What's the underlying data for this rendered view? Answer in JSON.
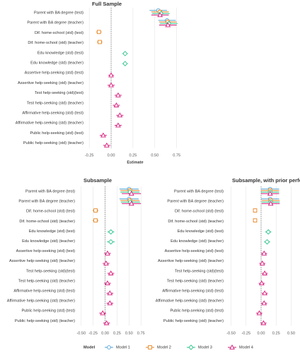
{
  "chart_data": [
    {
      "type": "coefplot",
      "title": "Full Sample",
      "xlabel": "Estimate",
      "legend_title": "Model",
      "categories": [
        "Parent with BA degree (test)",
        "Parent with BA degree (teacher)",
        "Dif. home-school (std) (test)",
        "Dif. home-school (std) (teacher)",
        "Edu knowledge (std) (test)",
        "Edu knowledge (std) (teacher)",
        "Assertive help-seeking (std) (test)",
        "Assertive help-seeking (std) (teacher)",
        "Test help-seeking (std)(test)",
        "Test help-seeking (std) (teacher)",
        "Affirmative help-seeking (std) (test)",
        "Affirmative help-seeking (std) (teacher)",
        "Public help-seeking (std) (test)",
        "Public help-seeking (std) (teacher)"
      ],
      "xlim": [
        -0.3,
        0.85
      ],
      "xticks": [
        -0.25,
        {
          "value": 0,
          "label": "0.00"
        },
        0.25,
        {
          "value": 0.5,
          "label": "0.50"
        },
        0.75
      ],
      "grid": true,
      "zero_line": true,
      "series": [
        {
          "name": "Model 1",
          "color": "#4ea3d9",
          "marker": "circle",
          "values": [
            0.54,
            0.64,
            null,
            null,
            null,
            null,
            null,
            null,
            null,
            null,
            null,
            null,
            null,
            null
          ],
          "errors": [
            0.1,
            0.1,
            null,
            null,
            null,
            null,
            null,
            null,
            null,
            null,
            null,
            null,
            null,
            null
          ]
        },
        {
          "name": "Model 2",
          "color": "#e8831f",
          "marker": "square",
          "values": [
            0.56,
            0.65,
            -0.14,
            -0.13,
            null,
            null,
            null,
            null,
            null,
            null,
            null,
            null,
            null,
            null
          ],
          "errors": [
            0.1,
            0.1,
            0.03,
            0.03,
            null,
            null,
            null,
            null,
            null,
            null,
            null,
            null,
            null,
            null
          ]
        },
        {
          "name": "Model 3",
          "color": "#2bc48a",
          "marker": "diamond",
          "values": [
            0.57,
            0.66,
            null,
            null,
            0.16,
            0.16,
            null,
            null,
            null,
            null,
            null,
            null,
            null,
            null
          ],
          "errors": [
            0.1,
            0.1,
            null,
            null,
            0.03,
            0.03,
            null,
            null,
            null,
            null,
            null,
            null,
            null,
            null
          ]
        },
        {
          "name": "Model 4",
          "color": "#d6197a",
          "marker": "triangle",
          "values": [
            0.56,
            0.65,
            null,
            null,
            null,
            null,
            0.0,
            0.0,
            0.08,
            0.06,
            0.1,
            0.08,
            -0.09,
            -0.05
          ],
          "errors": [
            0.1,
            0.1,
            null,
            null,
            null,
            null,
            0.03,
            0.04,
            0.04,
            0.04,
            0.04,
            0.04,
            0.04,
            0.04
          ]
        }
      ]
    },
    {
      "type": "coefplot",
      "title": "Subsample",
      "categories": [
        "Parent with BA degree (test)",
        "Parent with BA degree (teacher)",
        "Dif. home-school (std) (test)",
        "Dif. home-school (std) (teacher)",
        "Edu knowledge (std) (test)",
        "Edu knowledge (std) (teacher)",
        "Assertive help-seeking (std) (test)",
        "Assertive help-seeking (std) (teacher)",
        "Test help-seeking (std)(test)",
        "Test help-seeking (std) (teacher)",
        "Affirmative help-seeking (std) (test)",
        "Affirmative help-seeking (std) (teacher)",
        "Public help-seeking (std) (test)",
        "Public help-seeking (std) (teacher)"
      ],
      "xlim": [
        -0.6,
        0.85
      ],
      "xticks": [
        {
          "value": -0.5,
          "label": "-0.50"
        },
        -0.25,
        {
          "value": 0,
          "label": "0.00"
        },
        0.25,
        {
          "value": 0.5,
          "label": "0.50"
        },
        0.75
      ],
      "grid": true,
      "zero_line": true,
      "series": [
        {
          "name": "Model 1",
          "color": "#4ea3d9",
          "marker": "circle",
          "values": [
            0.5,
            0.5,
            null,
            null,
            null,
            null,
            null,
            null,
            null,
            null,
            null,
            null,
            null,
            null
          ],
          "errors": [
            0.2,
            0.2,
            null,
            null,
            null,
            null,
            null,
            null,
            null,
            null,
            null,
            null,
            null,
            null
          ]
        },
        {
          "name": "Model 2",
          "color": "#e8831f",
          "marker": "square",
          "values": [
            0.52,
            0.52,
            -0.2,
            -0.2,
            null,
            null,
            null,
            null,
            null,
            null,
            null,
            null,
            null,
            null
          ],
          "errors": [
            0.2,
            0.2,
            0.06,
            0.06,
            null,
            null,
            null,
            null,
            null,
            null,
            null,
            null,
            null,
            null
          ]
        },
        {
          "name": "Model 3",
          "color": "#2bc48a",
          "marker": "diamond",
          "values": [
            0.52,
            0.53,
            null,
            null,
            0.12,
            0.12,
            null,
            null,
            null,
            null,
            null,
            null,
            null,
            null
          ],
          "errors": [
            0.2,
            0.2,
            null,
            null,
            0.07,
            0.08,
            null,
            null,
            null,
            null,
            null,
            null,
            null,
            null
          ]
        },
        {
          "name": "Model 4",
          "color": "#d6197a",
          "marker": "triangle",
          "values": [
            0.55,
            0.55,
            null,
            null,
            null,
            null,
            0.05,
            0.02,
            0.12,
            0.05,
            0.1,
            0.1,
            -0.05,
            0.03
          ],
          "errors": [
            0.2,
            0.2,
            null,
            null,
            null,
            null,
            0.07,
            0.07,
            0.07,
            0.07,
            0.07,
            0.07,
            0.07,
            0.07
          ]
        }
      ]
    },
    {
      "type": "coefplot",
      "title": "Subsample, with prior performance",
      "categories": [
        "Parent with BA degree (test)",
        "Parent with BA degree (teacher)",
        "Dif. home-school (std) (test)",
        "Dif. home-school (std) (teacher)",
        "Edu knowledge (std) (test)",
        "Edu knowledge (std) (teacher)",
        "Assertive help-seeking (std) (test)",
        "Assertive help-seeking (std) (teacher)",
        "Test help-seeking (std)(test)",
        "Test help-seeking (std) (teacher)",
        "Affirmative help-seeking (std) (test)",
        "Affirmative help-seeking (std) (teacher)",
        "Public help-seeking (std) (test)",
        "Public help-seeking (std) (teacher)"
      ],
      "xlim": [
        -0.6,
        0.6
      ],
      "xticks": [
        {
          "value": -0.5,
          "label": "-0.50"
        },
        -0.25,
        {
          "value": 0,
          "label": "0.00"
        },
        0.25,
        {
          "value": 0.5,
          "label": "0.50"
        }
      ],
      "grid": true,
      "zero_line": true,
      "series": [
        {
          "name": "Model 1",
          "color": "#4ea3d9",
          "marker": "circle",
          "values": [
            0.15,
            0.15,
            null,
            null,
            null,
            null,
            null,
            null,
            null,
            null,
            null,
            null,
            null,
            null
          ],
          "errors": [
            0.15,
            0.15,
            null,
            null,
            null,
            null,
            null,
            null,
            null,
            null,
            null,
            null,
            null,
            null
          ]
        },
        {
          "name": "Model 2",
          "color": "#e8831f",
          "marker": "square",
          "values": [
            0.15,
            0.16,
            -0.1,
            -0.1,
            null,
            null,
            null,
            null,
            null,
            null,
            null,
            null,
            null,
            null
          ],
          "errors": [
            0.15,
            0.15,
            0.03,
            0.03,
            null,
            null,
            null,
            null,
            null,
            null,
            null,
            null,
            null,
            null
          ]
        },
        {
          "name": "Model 3",
          "color": "#2bc48a",
          "marker": "diamond",
          "values": [
            0.15,
            0.16,
            null,
            null,
            0.12,
            0.1,
            null,
            null,
            null,
            null,
            null,
            null,
            null,
            null
          ],
          "errors": [
            0.15,
            0.15,
            null,
            null,
            0.05,
            0.05,
            null,
            null,
            null,
            null,
            null,
            null,
            null,
            null
          ]
        },
        {
          "name": "Model 4",
          "color": "#d6197a",
          "marker": "triangle",
          "values": [
            0.15,
            0.16,
            null,
            null,
            null,
            null,
            0.05,
            0.02,
            0.06,
            0.01,
            0.06,
            0.05,
            -0.03,
            0.04
          ],
          "errors": [
            0.15,
            0.15,
            null,
            null,
            null,
            null,
            0.05,
            0.05,
            0.05,
            0.05,
            0.05,
            0.05,
            0.05,
            0.05
          ]
        }
      ]
    }
  ]
}
